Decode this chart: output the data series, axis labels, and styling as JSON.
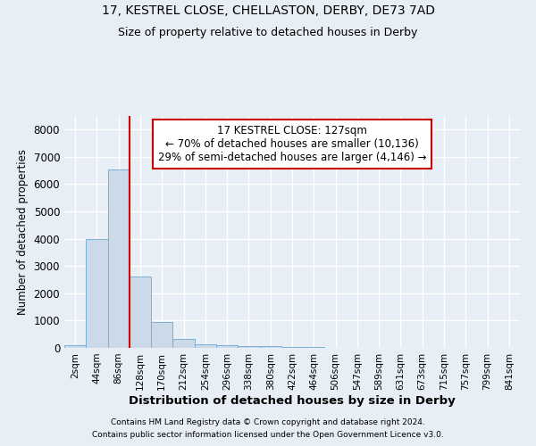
{
  "title_line1": "17, KESTREL CLOSE, CHELLASTON, DERBY, DE73 7AD",
  "title_line2": "Size of property relative to detached houses in Derby",
  "xlabel": "Distribution of detached houses by size in Derby",
  "ylabel": "Number of detached properties",
  "bar_color": "#ccd9e8",
  "bar_edge_color": "#7bafd4",
  "categories": [
    "2sqm",
    "44sqm",
    "86sqm",
    "128sqm",
    "170sqm",
    "212sqm",
    "254sqm",
    "296sqm",
    "338sqm",
    "380sqm",
    "422sqm",
    "464sqm",
    "506sqm",
    "547sqm",
    "589sqm",
    "631sqm",
    "673sqm",
    "715sqm",
    "757sqm",
    "799sqm",
    "841sqm"
  ],
  "values": [
    90,
    3980,
    6530,
    2600,
    960,
    320,
    135,
    110,
    75,
    55,
    45,
    45,
    0,
    0,
    0,
    0,
    0,
    0,
    0,
    0,
    0
  ],
  "ylim": [
    0,
    8500
  ],
  "yticks": [
    0,
    1000,
    2000,
    3000,
    4000,
    5000,
    6000,
    7000,
    8000
  ],
  "vline_x_index": 3,
  "annotation_text": "17 KESTREL CLOSE: 127sqm\n← 70% of detached houses are smaller (10,136)\n29% of semi-detached houses are larger (4,146) →",
  "annotation_box_color": "#ffffff",
  "annotation_box_edge": "#cc0000",
  "vline_color": "#cc0000",
  "footer_line1": "Contains HM Land Registry data © Crown copyright and database right 2024.",
  "footer_line2": "Contains public sector information licensed under the Open Government Licence v3.0.",
  "background_color": "#e8eef5",
  "grid_color": "#ffffff"
}
